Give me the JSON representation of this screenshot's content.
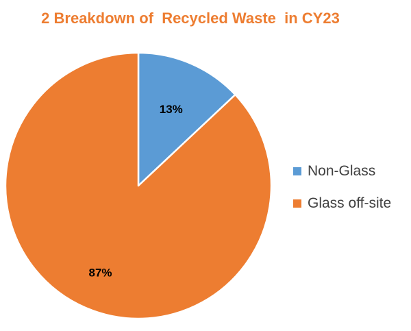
{
  "chart_data": {
    "type": "pie",
    "title": "2 Breakdown of  Recycled Waste  in CY23",
    "categories": [
      "Non-Glass",
      "Glass off-site"
    ],
    "values": [
      13,
      87
    ],
    "value_labels": [
      "13%",
      "87%"
    ],
    "colors": [
      "#5B9BD5",
      "#ED7D31"
    ],
    "legend_position": "right",
    "title_color": "#ED7D31"
  }
}
